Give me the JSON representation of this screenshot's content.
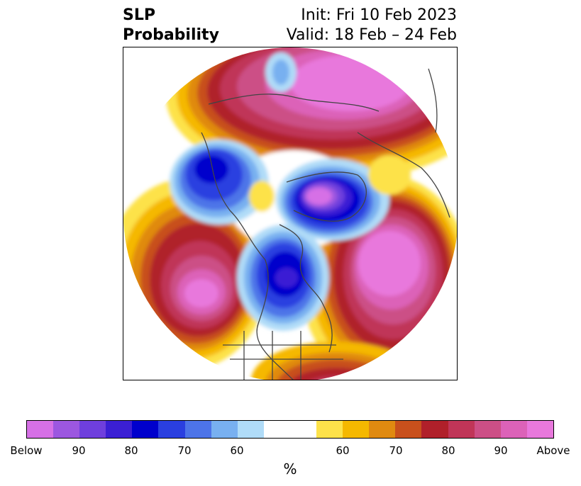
{
  "title": {
    "left_line1": "SLP",
    "left_line2": "Probability",
    "right_line1": "Init: Fri 10 Feb 2023",
    "right_line2": "Valid: 18 Feb – 24 Feb"
  },
  "colorbar": {
    "unit": "%",
    "below_colors": [
      "#d670e6",
      "#9c57e0",
      "#6f3fdd",
      "#3b1fd4",
      "#0000cc",
      "#2a3fe0",
      "#4d74e8",
      "#78b0f0",
      "#b0dcf8"
    ],
    "neutral_color": "#ffffff",
    "above_colors": [
      "#fde24a",
      "#f5b800",
      "#e08a10",
      "#c8501c",
      "#b0202a",
      "#c03558",
      "#cc4f86",
      "#dc62b8",
      "#e878dc"
    ],
    "tick_labels": [
      "Below",
      "90",
      "80",
      "70",
      "60",
      "60",
      "70",
      "80",
      "90",
      "Above"
    ]
  },
  "map": {
    "projection": "north-polar-stereographic",
    "field": "sea-level-pressure-probability",
    "regions": [
      {
        "name": "north-pacific-high",
        "category": "Above",
        "level": "90+"
      },
      {
        "name": "north-atlantic-high",
        "category": "Above",
        "level": "90+"
      },
      {
        "name": "siberia-high",
        "category": "Above",
        "level": "90+"
      },
      {
        "name": "arctic-low",
        "category": "Below",
        "level": "90+"
      },
      {
        "name": "central-canada-low",
        "category": "Below",
        "level": "80"
      },
      {
        "name": "alaska-low",
        "category": "Below",
        "level": "80"
      }
    ]
  }
}
